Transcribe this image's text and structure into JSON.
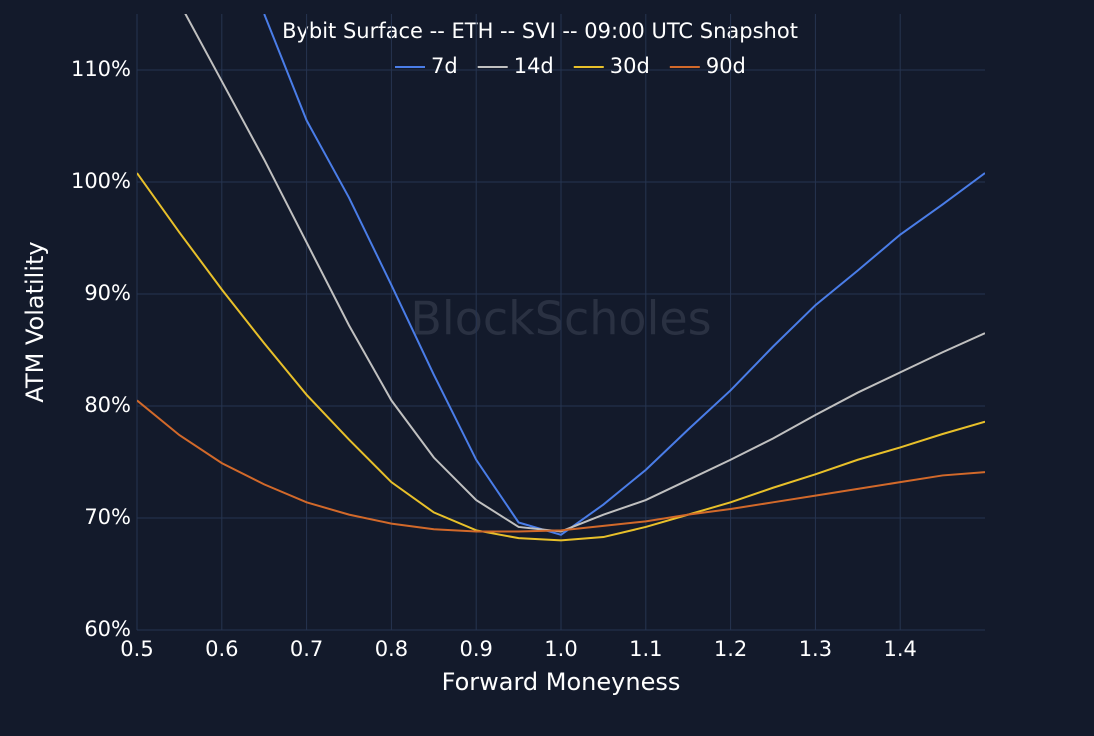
{
  "chart_data": {
    "type": "line",
    "title": "Bybit Surface -- ETH -- SVI -- 09:00 UTC Snapshot",
    "x_label": "Forward Moneyness",
    "y_label": "ATM Volatility",
    "annotation": "BlockScholes",
    "x": [
      0.5,
      0.55,
      0.6,
      0.65,
      0.7,
      0.75,
      0.8,
      0.85,
      0.9,
      0.95,
      1.0,
      1.05,
      1.1,
      1.15,
      1.2,
      1.25,
      1.3,
      1.35,
      1.4,
      1.45,
      1.5
    ],
    "series": [
      {
        "name": "7d",
        "color": "#4a7de8",
        "values": [
          null,
          null,
          null,
          115,
          105.5,
          98.6,
          90.8,
          82.8,
          75.2,
          69.6,
          68.5,
          71.2,
          74.3,
          77.9,
          81.4,
          85.3,
          89,
          92.1,
          95.3,
          98,
          100.8
        ]
      },
      {
        "name": "14d",
        "color": "#c0c0c0",
        "values": [
          null,
          116,
          109,
          102,
          94.6,
          87.2,
          80.5,
          75.4,
          71.6,
          69.2,
          68.8,
          70.3,
          71.6,
          73.4,
          75.2,
          77.1,
          79.2,
          81.2,
          83,
          84.8,
          86.5
        ]
      },
      {
        "name": "30d",
        "color": "#e8c02a",
        "values": [
          100.8,
          95.5,
          90.4,
          85.6,
          81,
          77,
          73.2,
          70.5,
          68.9,
          68.2,
          68,
          68.3,
          69.2,
          70.3,
          71.4,
          72.7,
          73.9,
          75.2,
          76.3,
          77.5,
          78.6
        ]
      },
      {
        "name": "90d",
        "color": "#d2692a",
        "values": [
          80.5,
          77.4,
          74.9,
          73,
          71.4,
          70.3,
          69.5,
          69,
          68.8,
          68.8,
          68.9,
          69.3,
          69.7,
          70.3,
          70.8,
          71.4,
          72,
          72.6,
          73.2,
          73.8,
          74.1
        ]
      }
    ],
    "xlim": [
      0.5,
      1.5
    ],
    "xticks": [
      0.5,
      0.6,
      0.7,
      0.8,
      0.9,
      {
        "value": 1,
        "label": "1.0"
      },
      1.1,
      1.2,
      1.3,
      1.4
    ],
    "ylim": [
      60,
      115
    ],
    "yticks": [
      {
        "value": 60,
        "label": "60%"
      },
      {
        "value": 70,
        "label": "70%"
      },
      {
        "value": 80,
        "label": "80%"
      },
      {
        "value": 90,
        "label": "90%"
      },
      {
        "value": 100,
        "label": "100%"
      },
      {
        "value": 110,
        "label": "110%"
      }
    ],
    "grid": true,
    "legend": "top"
  }
}
